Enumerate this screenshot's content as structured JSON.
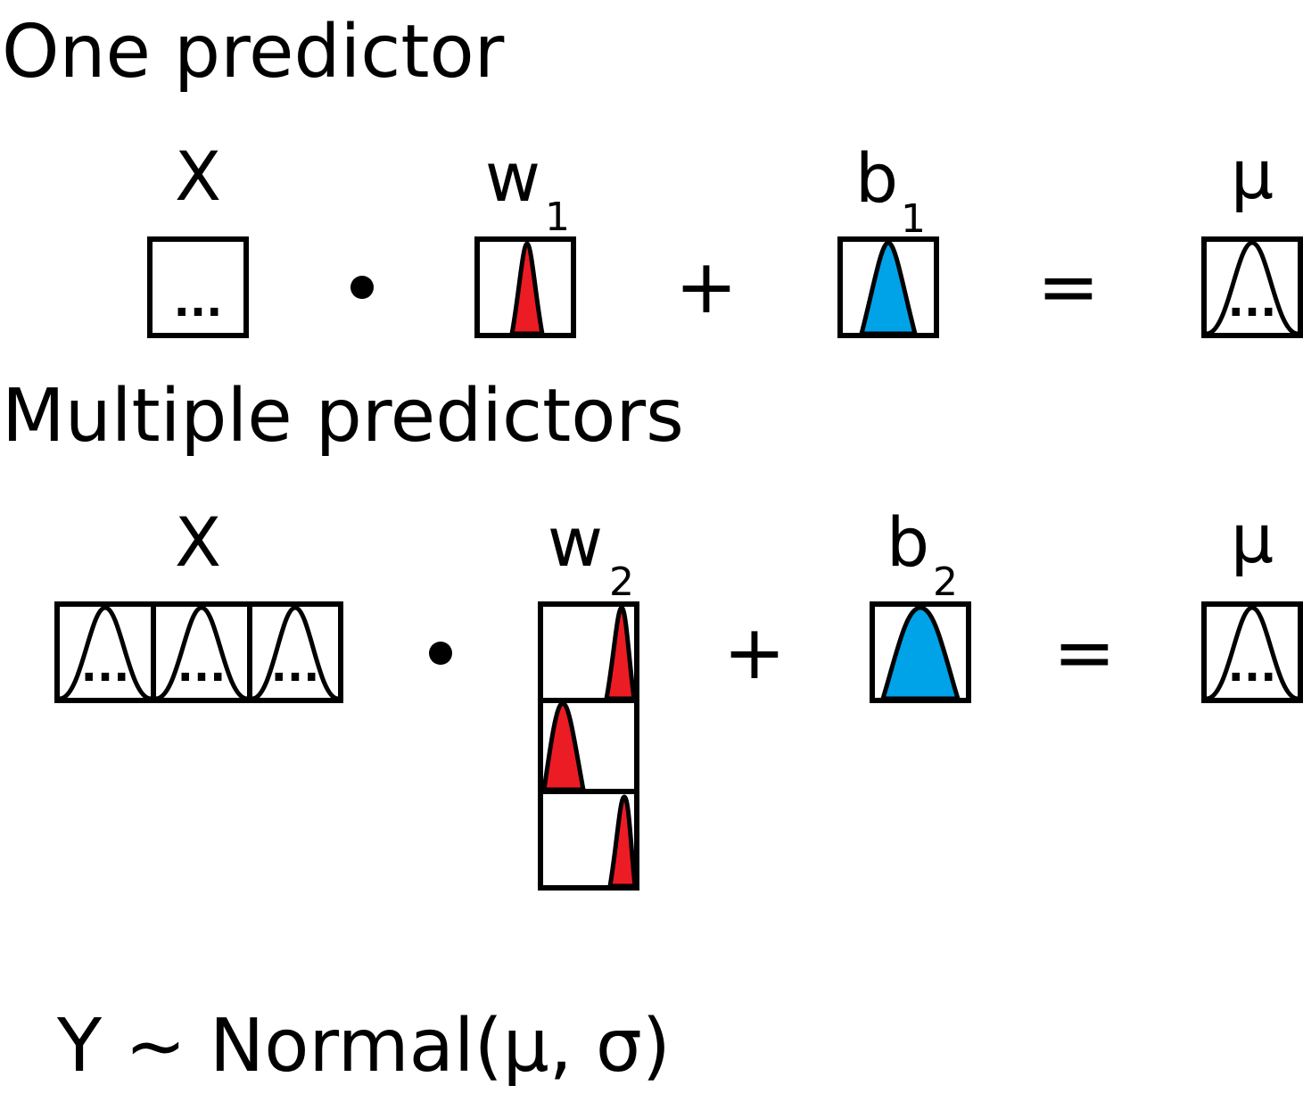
{
  "colors": {
    "weight_fill": "#ec1c24",
    "bias_fill": "#00a3e8",
    "ink": "#000000"
  },
  "section_one": {
    "title": "One predictor",
    "x_label": "X",
    "w_label": "w",
    "w_sub": "1",
    "b_label": "b",
    "b_sub": "1",
    "mu_label": "μ",
    "ellipsis": "...",
    "dot_op": "•",
    "plus_op": "+",
    "equals_op": "="
  },
  "section_multi": {
    "title": "Multiple predictors",
    "x_label": "X",
    "w_label": "w",
    "w_sub": "2",
    "b_label": "b",
    "b_sub": "2",
    "mu_label": "μ",
    "ellipsis": "...",
    "dot_op": "•",
    "plus_op": "+",
    "equals_op": "="
  },
  "formula": "Y ~ Normal(μ, σ)"
}
